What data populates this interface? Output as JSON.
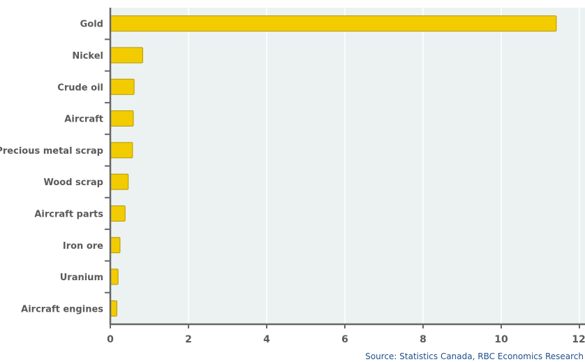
{
  "source": "Source: Statistics Canada, RBC Economics Research",
  "colors": {
    "bar": "#f2cc00",
    "bar_stroke": "#b39700",
    "plot_bg": "#ecf2f2",
    "grid": "#ffffff",
    "axis": "#666666"
  },
  "chart_data": {
    "type": "bar",
    "orientation": "horizontal",
    "categories": [
      "Gold",
      "Nickel",
      "Crude oil",
      "Aircraft",
      "Precious metal scrap",
      "Wood scrap",
      "Aircraft parts",
      "Iron ore",
      "Uranium",
      "Aircraft engines"
    ],
    "values": [
      11.4,
      0.82,
      0.6,
      0.58,
      0.56,
      0.45,
      0.37,
      0.24,
      0.19,
      0.16
    ],
    "xlim": [
      0,
      12
    ],
    "xticks": [
      "0",
      "2",
      "4",
      "6",
      "8",
      "10",
      "12"
    ],
    "grid": "vertical"
  }
}
